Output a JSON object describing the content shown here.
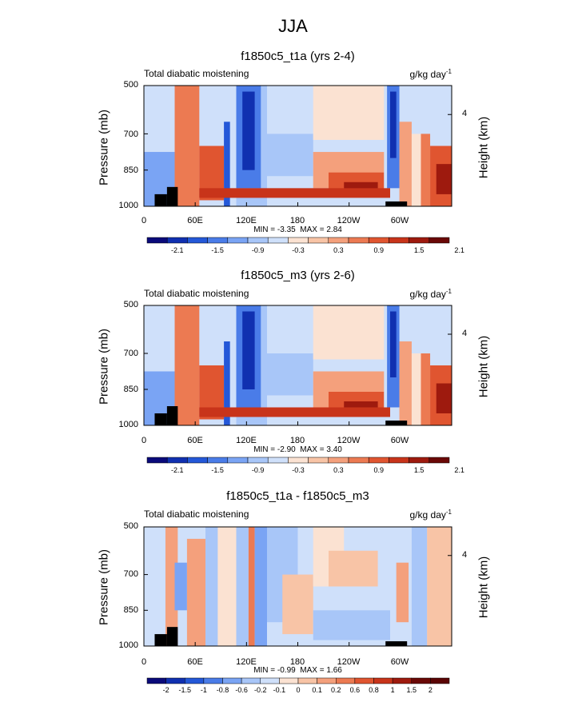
{
  "title": "JJA",
  "chart_data": [
    {
      "type": "heatmap",
      "title": "f1850c5_t1a (yrs 2-4)",
      "left_label": "Total diabatic moistening",
      "units_text": "g/kg day",
      "units_exp": "-1",
      "ylabel": "Pressure (mb)",
      "ylabel_right": "Height (km)",
      "yticks": [
        "500",
        "700",
        "850",
        "1000"
      ],
      "yticks_right": [
        "4"
      ],
      "xticks": [
        "0",
        "60E",
        "120E",
        "180",
        "120W",
        "60W"
      ],
      "min_text": "MIN = -3.35",
      "max_text": "MAX = 2.84",
      "colorbar_labels": [
        "-2.1",
        "-1.5",
        "-0.9",
        "-0.3",
        "0.3",
        "0.9",
        "1.5",
        "2.1"
      ]
    },
    {
      "type": "heatmap",
      "title": "f1850c5_m3 (yrs 2-6)",
      "left_label": "Total diabatic moistening",
      "units_text": "g/kg day",
      "units_exp": "-1",
      "ylabel": "Pressure (mb)",
      "ylabel_right": "Height (km)",
      "yticks": [
        "500",
        "700",
        "850",
        "1000"
      ],
      "yticks_right": [
        "4"
      ],
      "xticks": [
        "0",
        "60E",
        "120E",
        "180",
        "120W",
        "60W"
      ],
      "min_text": "MIN = -2.90",
      "max_text": "MAX = 3.40",
      "colorbar_labels": [
        "-2.1",
        "-1.5",
        "-0.9",
        "-0.3",
        "0.3",
        "0.9",
        "1.5",
        "2.1"
      ]
    },
    {
      "type": "heatmap",
      "title": "f1850c5_t1a - f1850c5_m3",
      "left_label": "Total diabatic moistening",
      "units_text": "g/kg day",
      "units_exp": "-1",
      "ylabel": "Pressure (mb)",
      "ylabel_right": "Height (km)",
      "yticks": [
        "500",
        "700",
        "850",
        "1000"
      ],
      "yticks_right": [
        "4"
      ],
      "xticks": [
        "0",
        "60E",
        "120E",
        "180",
        "120W",
        "60W"
      ],
      "min_text": "MIN = -0.99",
      "max_text": "MAX = 1.66",
      "colorbar_labels": [
        "-2",
        "-1.5",
        "-1",
        "-0.8",
        "-0.6",
        "-0.2",
        "-0.1",
        "0",
        "0.1",
        "0.2",
        "0.6",
        "0.8",
        "1",
        "1.5",
        "2"
      ]
    }
  ],
  "colors": {
    "palette": [
      "#0a0a7a",
      "#1030b0",
      "#2458d8",
      "#4a7ce8",
      "#7aa4f4",
      "#a8c6f8",
      "#cfe0fa",
      "#fbe2d2",
      "#f8c4a6",
      "#f4a07c",
      "#ec7a52",
      "#e05530",
      "#c8341a",
      "#9e1a0e",
      "#6a0806"
    ],
    "terrain": "#000000"
  }
}
